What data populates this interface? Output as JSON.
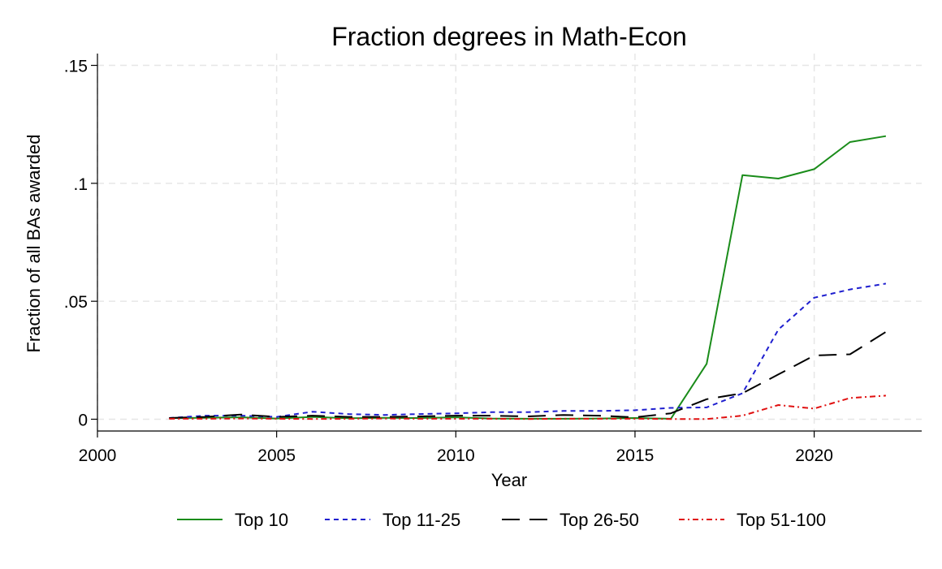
{
  "chart_data": {
    "type": "line",
    "title": "Fraction degrees in Math-Econ",
    "xlabel": "Year",
    "ylabel": "Fraction of all BAs awarded",
    "xlim": [
      2000,
      2023
    ],
    "ylim": [
      -0.005,
      0.155
    ],
    "xticks": [
      2000,
      2005,
      2010,
      2015,
      2020
    ],
    "xtick_labels": [
      "2000",
      "2005",
      "2010",
      "2015",
      "2020"
    ],
    "yticks": [
      0,
      0.05,
      0.1,
      0.15
    ],
    "ytick_labels": [
      "0",
      ".05",
      ".1",
      ".15"
    ],
    "grid": true,
    "legend_position": "bottom",
    "x": [
      2002,
      2003,
      2004,
      2005,
      2006,
      2007,
      2008,
      2009,
      2010,
      2011,
      2012,
      2013,
      2014,
      2015,
      2016,
      2017,
      2018,
      2019,
      2020,
      2021,
      2022
    ],
    "series": [
      {
        "name": "Top 10",
        "color": "#1a8c1a",
        "dash": "solid",
        "values": [
          0.0005,
          0.0006,
          0.0008,
          0.0003,
          0.001,
          0.0004,
          0.0006,
          0.0005,
          0.0008,
          0.0003,
          0.0002,
          0.0002,
          0.0003,
          0.0005,
          0.0002,
          0.0235,
          0.1035,
          0.102,
          0.106,
          0.1175,
          0.12
        ]
      },
      {
        "name": "Top 11-25",
        "color": "#1f1fcf",
        "dash": "short",
        "values": [
          0.0005,
          0.0015,
          0.0015,
          0.001,
          0.0032,
          0.0022,
          0.0018,
          0.0022,
          0.0025,
          0.003,
          0.003,
          0.0035,
          0.0035,
          0.0038,
          0.0048,
          0.005,
          0.011,
          0.038,
          0.0515,
          0.055,
          0.0575
        ]
      },
      {
        "name": "Top 26-50",
        "color": "#000000",
        "dash": "long",
        "values": [
          0.0005,
          0.001,
          0.002,
          0.001,
          0.0015,
          0.001,
          0.001,
          0.0012,
          0.0015,
          0.0015,
          0.0012,
          0.0018,
          0.0015,
          0.0008,
          0.0025,
          0.0085,
          0.011,
          0.019,
          0.027,
          0.0275,
          0.037
        ]
      },
      {
        "name": "Top 51-100",
        "color": "#e01010",
        "dash": "dashdot",
        "values": [
          0.0002,
          0.0002,
          0.0003,
          0.0002,
          0.0001,
          0.0002,
          0.0003,
          0.0002,
          0.0002,
          0.0002,
          0.0001,
          0.0002,
          0.0002,
          0.0002,
          0.0001,
          0.0001,
          0.0015,
          0.006,
          0.0045,
          0.009,
          0.01
        ]
      }
    ]
  }
}
